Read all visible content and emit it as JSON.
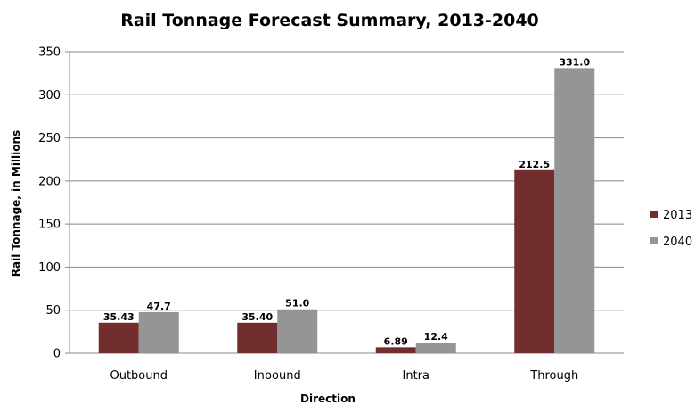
{
  "chart_data": {
    "type": "bar",
    "title": "Rail Tonnage Forecast Summary, 2013-2040",
    "xlabel": "Direction",
    "ylabel": "Rail Tonnage, in Millions",
    "categories": [
      "Outbound",
      "Inbound",
      "Intra",
      "Through"
    ],
    "ylim": [
      0,
      350
    ],
    "yticks": [
      0,
      50,
      100,
      150,
      200,
      250,
      300,
      350
    ],
    "grid": true,
    "legend_position": "right",
    "series": [
      {
        "name": "2013",
        "color": "#722E2E",
        "values": [
          35.43,
          35.4,
          6.89,
          212.5
        ],
        "labels": [
          "35.43",
          "35.40",
          "6.89",
          "212.5"
        ]
      },
      {
        "name": "2040",
        "color": "#959595",
        "values": [
          47.7,
          51.0,
          12.4,
          331.0
        ],
        "labels": [
          "47.7",
          "51.0",
          "12.4",
          "331.0"
        ]
      }
    ]
  }
}
